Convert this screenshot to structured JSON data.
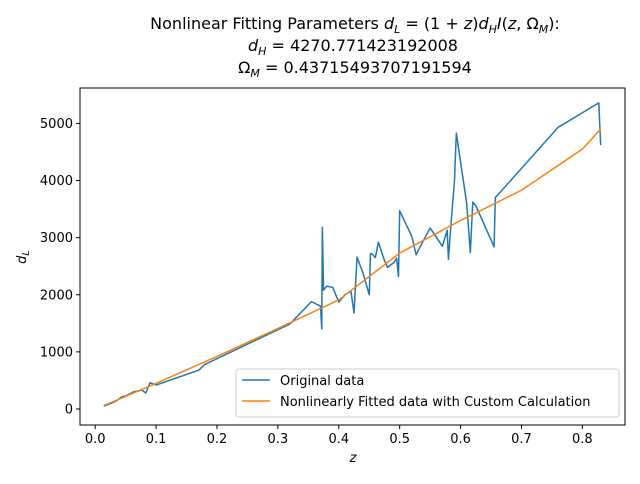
{
  "chart_data": {
    "type": "line",
    "title_lines": [
      "Nonlinear Fitting Parameters d_L = (1 + z)d_H I(z, Ω_M):",
      "d_H = 4270.771423192008",
      "Ω_M = 0.43715493707191594"
    ],
    "xlabel": "z",
    "ylabel": "d_L",
    "xlim": [
      -0.025,
      0.87
    ],
    "ylim": [
      -280,
      5620
    ],
    "xticks": [
      0.0,
      0.1,
      0.2,
      0.3,
      0.4,
      0.5,
      0.6,
      0.7,
      0.8
    ],
    "xtick_labels": [
      "0.0",
      "0.1",
      "0.2",
      "0.3",
      "0.4",
      "0.5",
      "0.6",
      "0.7",
      "0.8"
    ],
    "yticks": [
      0,
      1000,
      2000,
      3000,
      4000,
      5000
    ],
    "ytick_labels": [
      "0",
      "1000",
      "2000",
      "3000",
      "4000",
      "5000"
    ],
    "grid": false,
    "legend_position": "bottom-right",
    "series": [
      {
        "name": "Original data",
        "color": "#1f77b4",
        "x": [
          0.014,
          0.026,
          0.036,
          0.043,
          0.05,
          0.063,
          0.077,
          0.083,
          0.09,
          0.1,
          0.17,
          0.18,
          0.32,
          0.355,
          0.37,
          0.372,
          0.373,
          0.375,
          0.38,
          0.39,
          0.4,
          0.41,
          0.42,
          0.425,
          0.43,
          0.44,
          0.45,
          0.452,
          0.455,
          0.46,
          0.465,
          0.475,
          0.48,
          0.49,
          0.495,
          0.498,
          0.5,
          0.52,
          0.527,
          0.535,
          0.55,
          0.57,
          0.578,
          0.58,
          0.585,
          0.59,
          0.593,
          0.61,
          0.616,
          0.62,
          0.625,
          0.655,
          0.657,
          0.76,
          0.827,
          0.83
        ],
        "y": [
          50,
          100,
          150,
          210,
          230,
          300,
          330,
          280,
          460,
          420,
          680,
          780,
          1490,
          1880,
          1800,
          1400,
          3180,
          2080,
          2150,
          2130,
          1870,
          2000,
          2060,
          1680,
          2660,
          2370,
          2000,
          2720,
          2710,
          2650,
          2920,
          2600,
          2480,
          2560,
          2640,
          2320,
          3470,
          3020,
          2700,
          2870,
          3170,
          2850,
          3130,
          2620,
          3340,
          4000,
          4830,
          3600,
          2740,
          3620,
          3560,
          2840,
          3700,
          4930,
          5360,
          4620
        ]
      },
      {
        "name": "Nonlinearly Fitted data with Custom Calculation",
        "color": "#ff7f0e",
        "x": [
          0.014,
          0.05,
          0.1,
          0.2,
          0.3,
          0.4,
          0.5,
          0.6,
          0.7,
          0.8,
          0.83
        ],
        "y": [
          60,
          220,
          450,
          920,
          1410,
          1910,
          2730,
          3300,
          3830,
          4550,
          4900
        ]
      }
    ]
  }
}
